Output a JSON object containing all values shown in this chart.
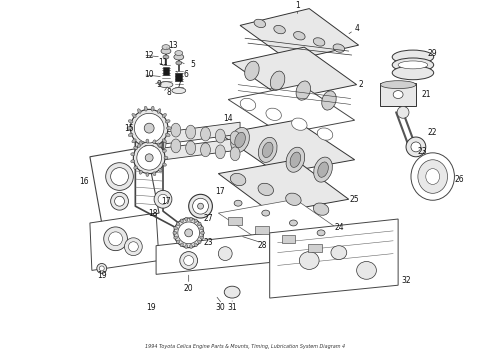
{
  "title": "1994 Toyota Celica Engine Parts & Mounts, Timing, Lubrication System Diagram 4",
  "background_color": "#ffffff",
  "line_color": "#333333",
  "text_color": "#111111",
  "fig_width": 4.9,
  "fig_height": 3.6,
  "dpi": 100
}
